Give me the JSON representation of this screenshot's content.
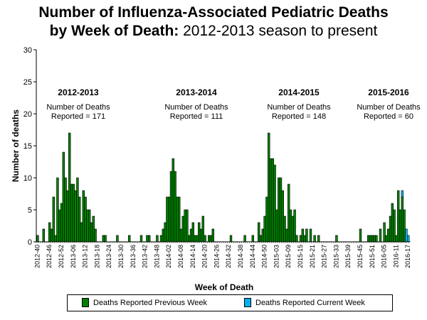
{
  "title": {
    "line1": "Number of Influenza-Associated Pediatric Deaths",
    "line2_bold": "by Week of Death:",
    "line2_rest": " 2012-2013 season to present"
  },
  "chart_data": {
    "type": "bar",
    "stacked": true,
    "xlabel": "Week of Death",
    "ylabel": "Number of deaths",
    "ylim": [
      0,
      30
    ],
    "yticks": [
      0,
      5,
      10,
      15,
      20,
      25,
      30
    ],
    "first_week": "2012-40",
    "last_week": "2016-17",
    "xtick_labels": [
      "2012-40",
      "2012-46",
      "2012-52",
      "2013-06",
      "2013-12",
      "2013-18",
      "2013-24",
      "2013-30",
      "2013-36",
      "2013-42",
      "2013-48",
      "2014-02",
      "2014-08",
      "2014-14",
      "2014-20",
      "2014-26",
      "2014-32",
      "2014-38",
      "2014-44",
      "2014-50",
      "2015-03",
      "2015-09",
      "2015-15",
      "2015-21",
      "2015-27",
      "2015-33",
      "2015-39",
      "2015-45",
      "2015-51",
      "2016-05",
      "2016-11",
      "2016-17"
    ],
    "series": [
      {
        "name": "Deaths Reported Previous Week",
        "color": "#008000",
        "values": [
          1,
          0,
          0,
          2,
          0,
          0,
          3,
          2,
          7,
          1,
          10,
          5,
          6,
          14,
          10,
          8,
          17,
          9,
          9,
          8,
          10,
          7,
          3,
          8,
          7,
          5,
          5,
          3,
          4,
          2,
          0,
          0,
          0,
          1,
          1,
          0,
          0,
          0,
          0,
          0,
          1,
          0,
          0,
          0,
          0,
          0,
          1,
          0,
          0,
          0,
          0,
          0,
          1,
          0,
          0,
          1,
          1,
          0,
          0,
          0,
          1,
          0,
          1,
          2,
          3,
          7,
          7,
          11,
          13,
          11,
          7,
          7,
          2,
          4,
          5,
          5,
          1,
          2,
          3,
          1,
          1,
          3,
          2,
          4,
          1,
          0,
          1,
          1,
          2,
          0,
          0,
          0,
          0,
          0,
          0,
          0,
          0,
          1,
          0,
          0,
          0,
          0,
          0,
          0,
          1,
          0,
          0,
          0,
          1,
          0,
          0,
          3,
          1,
          2,
          4,
          7,
          17,
          13,
          13,
          12,
          5,
          10,
          10,
          8,
          4,
          2,
          9,
          5,
          4,
          5,
          1,
          0,
          1,
          2,
          1,
          2,
          0,
          2,
          0,
          1,
          0,
          1,
          0,
          0,
          0,
          0,
          0,
          0,
          0,
          0,
          1,
          0,
          0,
          0,
          0,
          0,
          0,
          0,
          0,
          0,
          0,
          0,
          2,
          0,
          0,
          0,
          1,
          1,
          1,
          1,
          1,
          0,
          2,
          0,
          3,
          1,
          2,
          4,
          6,
          5,
          1,
          8,
          5,
          7,
          5,
          0,
          0
        ]
      },
      {
        "name": "Deaths Reported Current Week",
        "color": "#00B0F0",
        "values": [
          0,
          0,
          0,
          0,
          0,
          0,
          0,
          0,
          0,
          0,
          0,
          0,
          0,
          0,
          0,
          0,
          0,
          0,
          0,
          0,
          0,
          0,
          0,
          0,
          0,
          0,
          0,
          0,
          0,
          0,
          0,
          0,
          0,
          0,
          0,
          0,
          0,
          0,
          0,
          0,
          0,
          0,
          0,
          0,
          0,
          0,
          0,
          0,
          0,
          0,
          0,
          0,
          0,
          0,
          0,
          0,
          0,
          0,
          0,
          0,
          0,
          0,
          0,
          0,
          0,
          0,
          0,
          0,
          0,
          0,
          0,
          0,
          0,
          0,
          0,
          0,
          0,
          0,
          0,
          0,
          0,
          0,
          0,
          0,
          0,
          0,
          0,
          0,
          0,
          0,
          0,
          0,
          0,
          0,
          0,
          0,
          0,
          0,
          0,
          0,
          0,
          0,
          0,
          0,
          0,
          0,
          0,
          0,
          0,
          0,
          0,
          0,
          0,
          0,
          0,
          0,
          0,
          0,
          0,
          0,
          0,
          0,
          0,
          0,
          0,
          0,
          0,
          0,
          0,
          0,
          0,
          0,
          0,
          0,
          0,
          0,
          0,
          0,
          0,
          0,
          0,
          0,
          0,
          0,
          0,
          0,
          0,
          0,
          0,
          0,
          0,
          0,
          0,
          0,
          0,
          0,
          0,
          0,
          0,
          0,
          0,
          0,
          0,
          0,
          0,
          0,
          0,
          0,
          0,
          0,
          0,
          0,
          0,
          0,
          0,
          0,
          0,
          0,
          0,
          0,
          0,
          0,
          0,
          1,
          0,
          2,
          1
        ]
      }
    ],
    "annotations": [
      {
        "season": "2012-2013",
        "line1": "Number of Deaths",
        "line2": "Reported = 171"
      },
      {
        "season": "2013-2014",
        "line1": "Number of Deaths",
        "line2": "Reported = 111"
      },
      {
        "season": "2014-2015",
        "line1": "Number of Deaths",
        "line2": "Reported = 148"
      },
      {
        "season": "2015-2016",
        "line1": "Number of Deaths",
        "line2": "Reported = 60"
      }
    ],
    "legend_position": "bottom",
    "grid": false
  }
}
